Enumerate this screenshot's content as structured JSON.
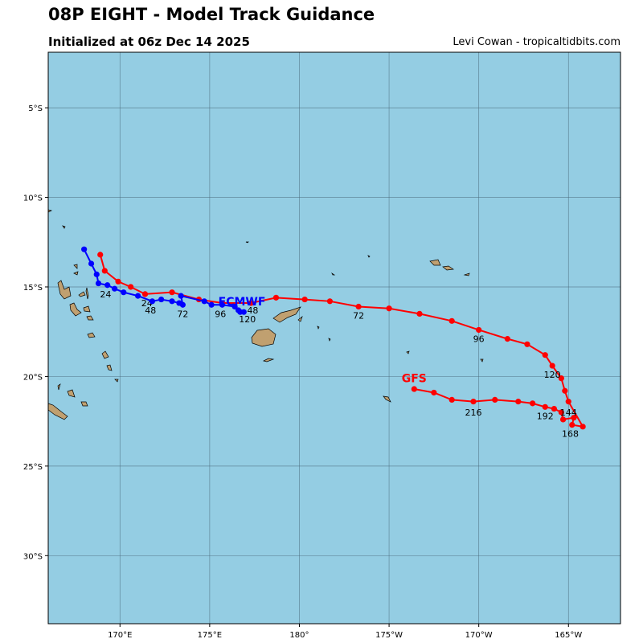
{
  "title": "08P EIGHT - Model Track Guidance",
  "subtitle": "Initialized at 06z Dec 14 2025",
  "credit": "Levi Cowan - tropicaltidbits.com",
  "colors": {
    "ocean": "#94cde3",
    "land": "#c0a070",
    "gfs": "#ff0000",
    "ecmwf": "#0000ff"
  },
  "map": {
    "lon_range": [
      166.0,
      197.9
    ],
    "lat_range": [
      -33.8,
      -1.9
    ]
  },
  "lon_ticks": [
    {
      "v": 170,
      "label": "170°E"
    },
    {
      "v": 175,
      "label": "175°E"
    },
    {
      "v": 180,
      "label": "180°"
    },
    {
      "v": 185,
      "label": "175°W"
    },
    {
      "v": 190,
      "label": "170°W"
    },
    {
      "v": 195,
      "label": "165°W"
    }
  ],
  "lat_ticks": [
    {
      "v": -5,
      "label": "5°S"
    },
    {
      "v": -10,
      "label": "10°S"
    },
    {
      "v": -15,
      "label": "15°S"
    },
    {
      "v": -20,
      "label": "20°S"
    },
    {
      "v": -25,
      "label": "25°S"
    },
    {
      "v": -30,
      "label": "30°S"
    }
  ],
  "tracks": [
    {
      "name": "GFS",
      "color": "#ff0000",
      "name_pos": [
        186.4,
        -20.1
      ],
      "points": [
        [
          168.9,
          -13.2
        ],
        [
          169.15,
          -14.1
        ],
        [
          169.9,
          -14.7
        ],
        [
          170.6,
          -15.0
        ],
        [
          171.4,
          -15.4
        ],
        [
          172.9,
          -15.3
        ],
        [
          174.4,
          -15.7
        ],
        [
          175.7,
          -15.9
        ],
        [
          177.3,
          -15.9
        ],
        [
          178.7,
          -15.6
        ],
        [
          180.3,
          -15.7
        ],
        [
          181.7,
          -15.8
        ],
        [
          183.3,
          -16.1
        ],
        [
          185.0,
          -16.2
        ],
        [
          186.7,
          -16.5
        ],
        [
          188.5,
          -16.9
        ],
        [
          190.0,
          -17.4
        ],
        [
          191.6,
          -17.9
        ],
        [
          192.7,
          -18.2
        ],
        [
          193.7,
          -18.8
        ],
        [
          194.1,
          -19.4
        ],
        [
          194.6,
          -20.1
        ],
        [
          194.8,
          -20.8
        ],
        [
          195.0,
          -21.4
        ],
        [
          195.8,
          -22.8
        ],
        [
          195.2,
          -22.7
        ],
        [
          195.3,
          -22.3
        ],
        [
          194.7,
          -22.4
        ],
        [
          194.6,
          -22.0
        ],
        [
          194.2,
          -21.8
        ],
        [
          193.7,
          -21.7
        ],
        [
          193.0,
          -21.5
        ],
        [
          192.2,
          -21.4
        ],
        [
          190.9,
          -21.3
        ],
        [
          189.7,
          -21.4
        ],
        [
          188.5,
          -21.3
        ],
        [
          187.5,
          -20.9
        ],
        [
          186.4,
          -20.7
        ]
      ],
      "labels": [
        {
          "text": "24",
          "pos": [
            171.5,
            -15.9
          ]
        },
        {
          "text": "72",
          "pos": [
            183.3,
            -16.6
          ]
        },
        {
          "text": "96",
          "pos": [
            190.0,
            -17.9
          ]
        },
        {
          "text": "120",
          "pos": [
            194.1,
            -19.9
          ]
        },
        {
          "text": "144",
          "pos": [
            195.0,
            -22.0
          ]
        },
        {
          "text": "168",
          "pos": [
            195.1,
            -23.2
          ]
        },
        {
          "text": "192",
          "pos": [
            193.7,
            -22.2
          ]
        },
        {
          "text": "216",
          "pos": [
            189.7,
            -22.0
          ]
        }
      ]
    },
    {
      "name": "ECMWF",
      "color": "#0000ff",
      "name_pos": [
        176.8,
        -15.8
      ],
      "points": [
        [
          168.0,
          -12.9
        ],
        [
          168.4,
          -13.7
        ],
        [
          168.7,
          -14.3
        ],
        [
          168.8,
          -14.8
        ],
        [
          169.3,
          -14.9
        ],
        [
          169.7,
          -15.1
        ],
        [
          170.2,
          -15.3
        ],
        [
          171.0,
          -15.5
        ],
        [
          171.8,
          -15.8
        ],
        [
          172.3,
          -15.7
        ],
        [
          172.9,
          -15.8
        ],
        [
          173.3,
          -15.9
        ],
        [
          173.5,
          -16.0
        ],
        [
          173.4,
          -15.5
        ],
        [
          174.7,
          -15.8
        ],
        [
          175.1,
          -16.0
        ],
        [
          175.7,
          -16.0
        ],
        [
          176.4,
          -16.1
        ],
        [
          176.6,
          -16.3
        ],
        [
          176.9,
          -16.4
        ],
        [
          176.7,
          -16.4
        ]
      ],
      "labels": [
        {
          "text": "24",
          "pos": [
            169.2,
            -15.4
          ]
        },
        {
          "text": "48",
          "pos": [
            171.7,
            -16.3
          ]
        },
        {
          "text": "72",
          "pos": [
            173.5,
            -16.5
          ]
        },
        {
          "text": "96",
          "pos": [
            175.6,
            -16.5
          ]
        },
        {
          "text": "120",
          "pos": [
            177.1,
            -16.8
          ]
        },
        {
          "text": "48",
          "pos": [
            177.4,
            -16.3
          ]
        }
      ]
    }
  ]
}
